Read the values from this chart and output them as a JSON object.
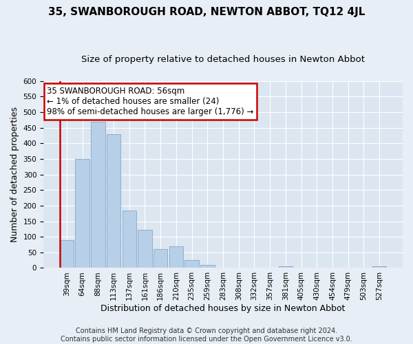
{
  "title": "35, SWANBOROUGH ROAD, NEWTON ABBOT, TQ12 4JL",
  "subtitle": "Size of property relative to detached houses in Newton Abbot",
  "xlabel": "Distribution of detached houses by size in Newton Abbot",
  "ylabel": "Number of detached properties",
  "bar_labels": [
    "39sqm",
    "64sqm",
    "88sqm",
    "113sqm",
    "137sqm",
    "161sqm",
    "186sqm",
    "210sqm",
    "235sqm",
    "259sqm",
    "283sqm",
    "308sqm",
    "332sqm",
    "357sqm",
    "381sqm",
    "405sqm",
    "430sqm",
    "454sqm",
    "479sqm",
    "503sqm",
    "527sqm"
  ],
  "bar_values": [
    90,
    350,
    470,
    430,
    185,
    122,
    60,
    70,
    26,
    10,
    0,
    0,
    0,
    0,
    5,
    0,
    0,
    0,
    0,
    0,
    5
  ],
  "bar_color": "#b8cfe8",
  "bar_edge_color": "#7fa8cc",
  "highlight_color": "#cc0000",
  "annotation_title": "35 SWANBOROUGH ROAD: 56sqm",
  "annotation_line1": "← 1% of detached houses are smaller (24)",
  "annotation_line2": "98% of semi-detached houses are larger (1,776) →",
  "annotation_box_color": "#ffffff",
  "annotation_box_edgecolor": "#cc0000",
  "ylim": [
    0,
    600
  ],
  "yticks": [
    0,
    50,
    100,
    150,
    200,
    250,
    300,
    350,
    400,
    450,
    500,
    550,
    600
  ],
  "footer_line1": "Contains HM Land Registry data © Crown copyright and database right 2024.",
  "footer_line2": "Contains public sector information licensed under the Open Government Licence v3.0.",
  "bg_color": "#e8eef5",
  "plot_bg_color": "#dce6f0",
  "title_fontsize": 11,
  "subtitle_fontsize": 9.5,
  "axis_label_fontsize": 9,
  "tick_fontsize": 7.5,
  "annotation_fontsize": 8.5,
  "footer_fontsize": 7,
  "red_line_x": -0.5
}
